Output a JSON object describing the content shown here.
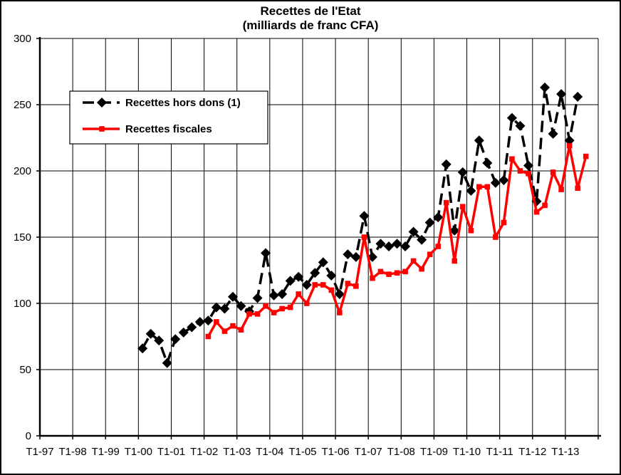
{
  "chart_data": {
    "type": "line",
    "title": "Recettes de l'Etat",
    "subtitle": "(milliards de franc CFA)",
    "xlabel": "",
    "ylabel": "",
    "ylim": [
      0,
      300
    ],
    "yticks": [
      0,
      50,
      100,
      150,
      200,
      250,
      300
    ],
    "grid": true,
    "legend_position": "top-left",
    "x_tick_labels": [
      "T1-97",
      "T1-98",
      "T1-99",
      "T1-00",
      "T1-01",
      "T1-02",
      "T1-03",
      "T1-04",
      "T1-05",
      "T1-06",
      "T1-07",
      "T1-08",
      "T1-09",
      "T1-10",
      "T1-11",
      "T1-12",
      "T1-13"
    ],
    "series": [
      {
        "name": "Recettes hors dons (1)",
        "color": "#000000",
        "marker": "diamond",
        "line_style": "dashed",
        "start_quarter": 12,
        "values": [
          66,
          77,
          72,
          55,
          73,
          78,
          82,
          86,
          87,
          97,
          96,
          105,
          98,
          94,
          104,
          138,
          106,
          107,
          117,
          120,
          114,
          123,
          131,
          121,
          107,
          137,
          135,
          166,
          135,
          145,
          143,
          145,
          143,
          154,
          148,
          161,
          165,
          205,
          155,
          199,
          185,
          223,
          206,
          191,
          193,
          240,
          234,
          204,
          177,
          263,
          228,
          258,
          223,
          256
        ]
      },
      {
        "name": "Recettes fiscales",
        "color": "#ff0000",
        "marker": "square",
        "line_style": "solid",
        "start_quarter": 20,
        "values": [
          75,
          86,
          79,
          83,
          80,
          92,
          92,
          98,
          93,
          96,
          97,
          107,
          100,
          114,
          114,
          110,
          93,
          115,
          113,
          150,
          119,
          124,
          122,
          123,
          124,
          132,
          126,
          137,
          143,
          176,
          132,
          173,
          155,
          188,
          188,
          150,
          161,
          209,
          200,
          198,
          169,
          174,
          199,
          186,
          219,
          187,
          211
        ]
      }
    ]
  }
}
